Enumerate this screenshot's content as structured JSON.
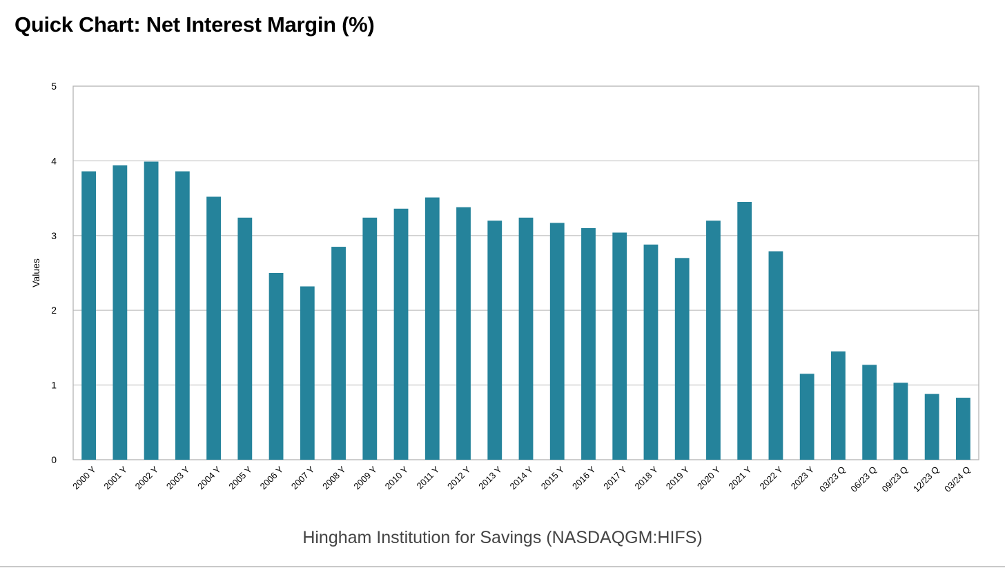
{
  "chart_data": {
    "type": "bar",
    "title": "Quick Chart: Net Interest Margin (%)",
    "xlabel": "Hingham Institution for Savings (NASDAQGM:HIFS)",
    "ylabel": "Values",
    "ylim": [
      0,
      5
    ],
    "yticks": [
      "0",
      "1",
      "2",
      "3",
      "4",
      "5"
    ],
    "grid": true,
    "legend": "none",
    "categories": [
      "2000 Y",
      "2001 Y",
      "2002 Y",
      "2003 Y",
      "2004 Y",
      "2005 Y",
      "2006 Y",
      "2007 Y",
      "2008 Y",
      "2009 Y",
      "2010 Y",
      "2011 Y",
      "2012 Y",
      "2013 Y",
      "2014 Y",
      "2015 Y",
      "2016 Y",
      "2017 Y",
      "2018 Y",
      "2019 Y",
      "2020 Y",
      "2021 Y",
      "2022 Y",
      "2023 Y",
      "03/23 Q",
      "06/23 Q",
      "09/23 Q",
      "12/23 Q",
      "03/24 Q"
    ],
    "values": [
      3.86,
      3.94,
      3.99,
      3.86,
      3.52,
      3.24,
      2.5,
      2.32,
      2.85,
      3.24,
      3.36,
      3.51,
      3.38,
      3.2,
      3.24,
      3.17,
      3.1,
      3.04,
      2.88,
      2.7,
      3.2,
      3.45,
      2.79,
      1.15,
      1.45,
      1.27,
      1.03,
      0.88,
      0.83
    ],
    "colors": {
      "bar": "#25839b",
      "grid": "#c8c8c8",
      "frame": "#b4b4b4",
      "text": "#000000",
      "xlabel": "#444444"
    }
  }
}
